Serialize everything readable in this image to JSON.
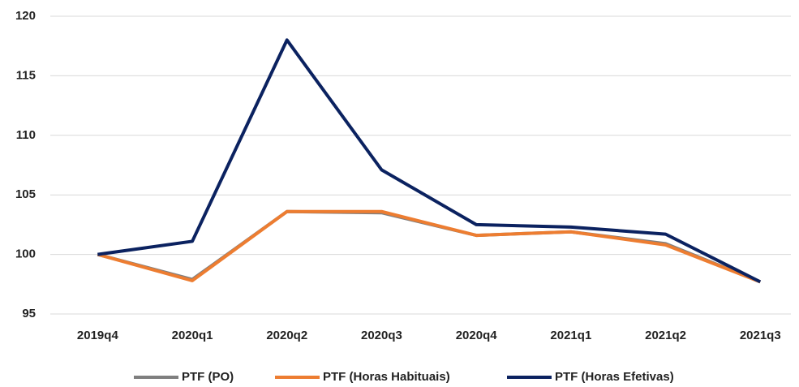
{
  "chart_data": {
    "type": "line",
    "categories": [
      "2019q4",
      "2020q1",
      "2020q2",
      "2020q3",
      "2020q4",
      "2021q1",
      "2021q2",
      "2021q3"
    ],
    "series": [
      {
        "name": "PTF (PO)",
        "color": "#7f7f7f",
        "values": [
          100,
          97.9,
          103.6,
          103.5,
          101.6,
          101.9,
          100.9,
          97.7
        ]
      },
      {
        "name": "PTF (Horas Habituais)",
        "color": "#ed7d31",
        "values": [
          100,
          97.8,
          103.6,
          103.6,
          101.6,
          101.9,
          100.8,
          97.7
        ]
      },
      {
        "name": "PTF (Horas Efetivas)",
        "color": "#0b2260",
        "values": [
          100,
          101.1,
          118.0,
          107.1,
          102.5,
          102.3,
          101.7,
          97.7
        ]
      }
    ],
    "ylim": [
      95,
      120
    ],
    "yticks": [
      95,
      100,
      105,
      110,
      115,
      120
    ],
    "grid": true,
    "legend": "bottom"
  }
}
